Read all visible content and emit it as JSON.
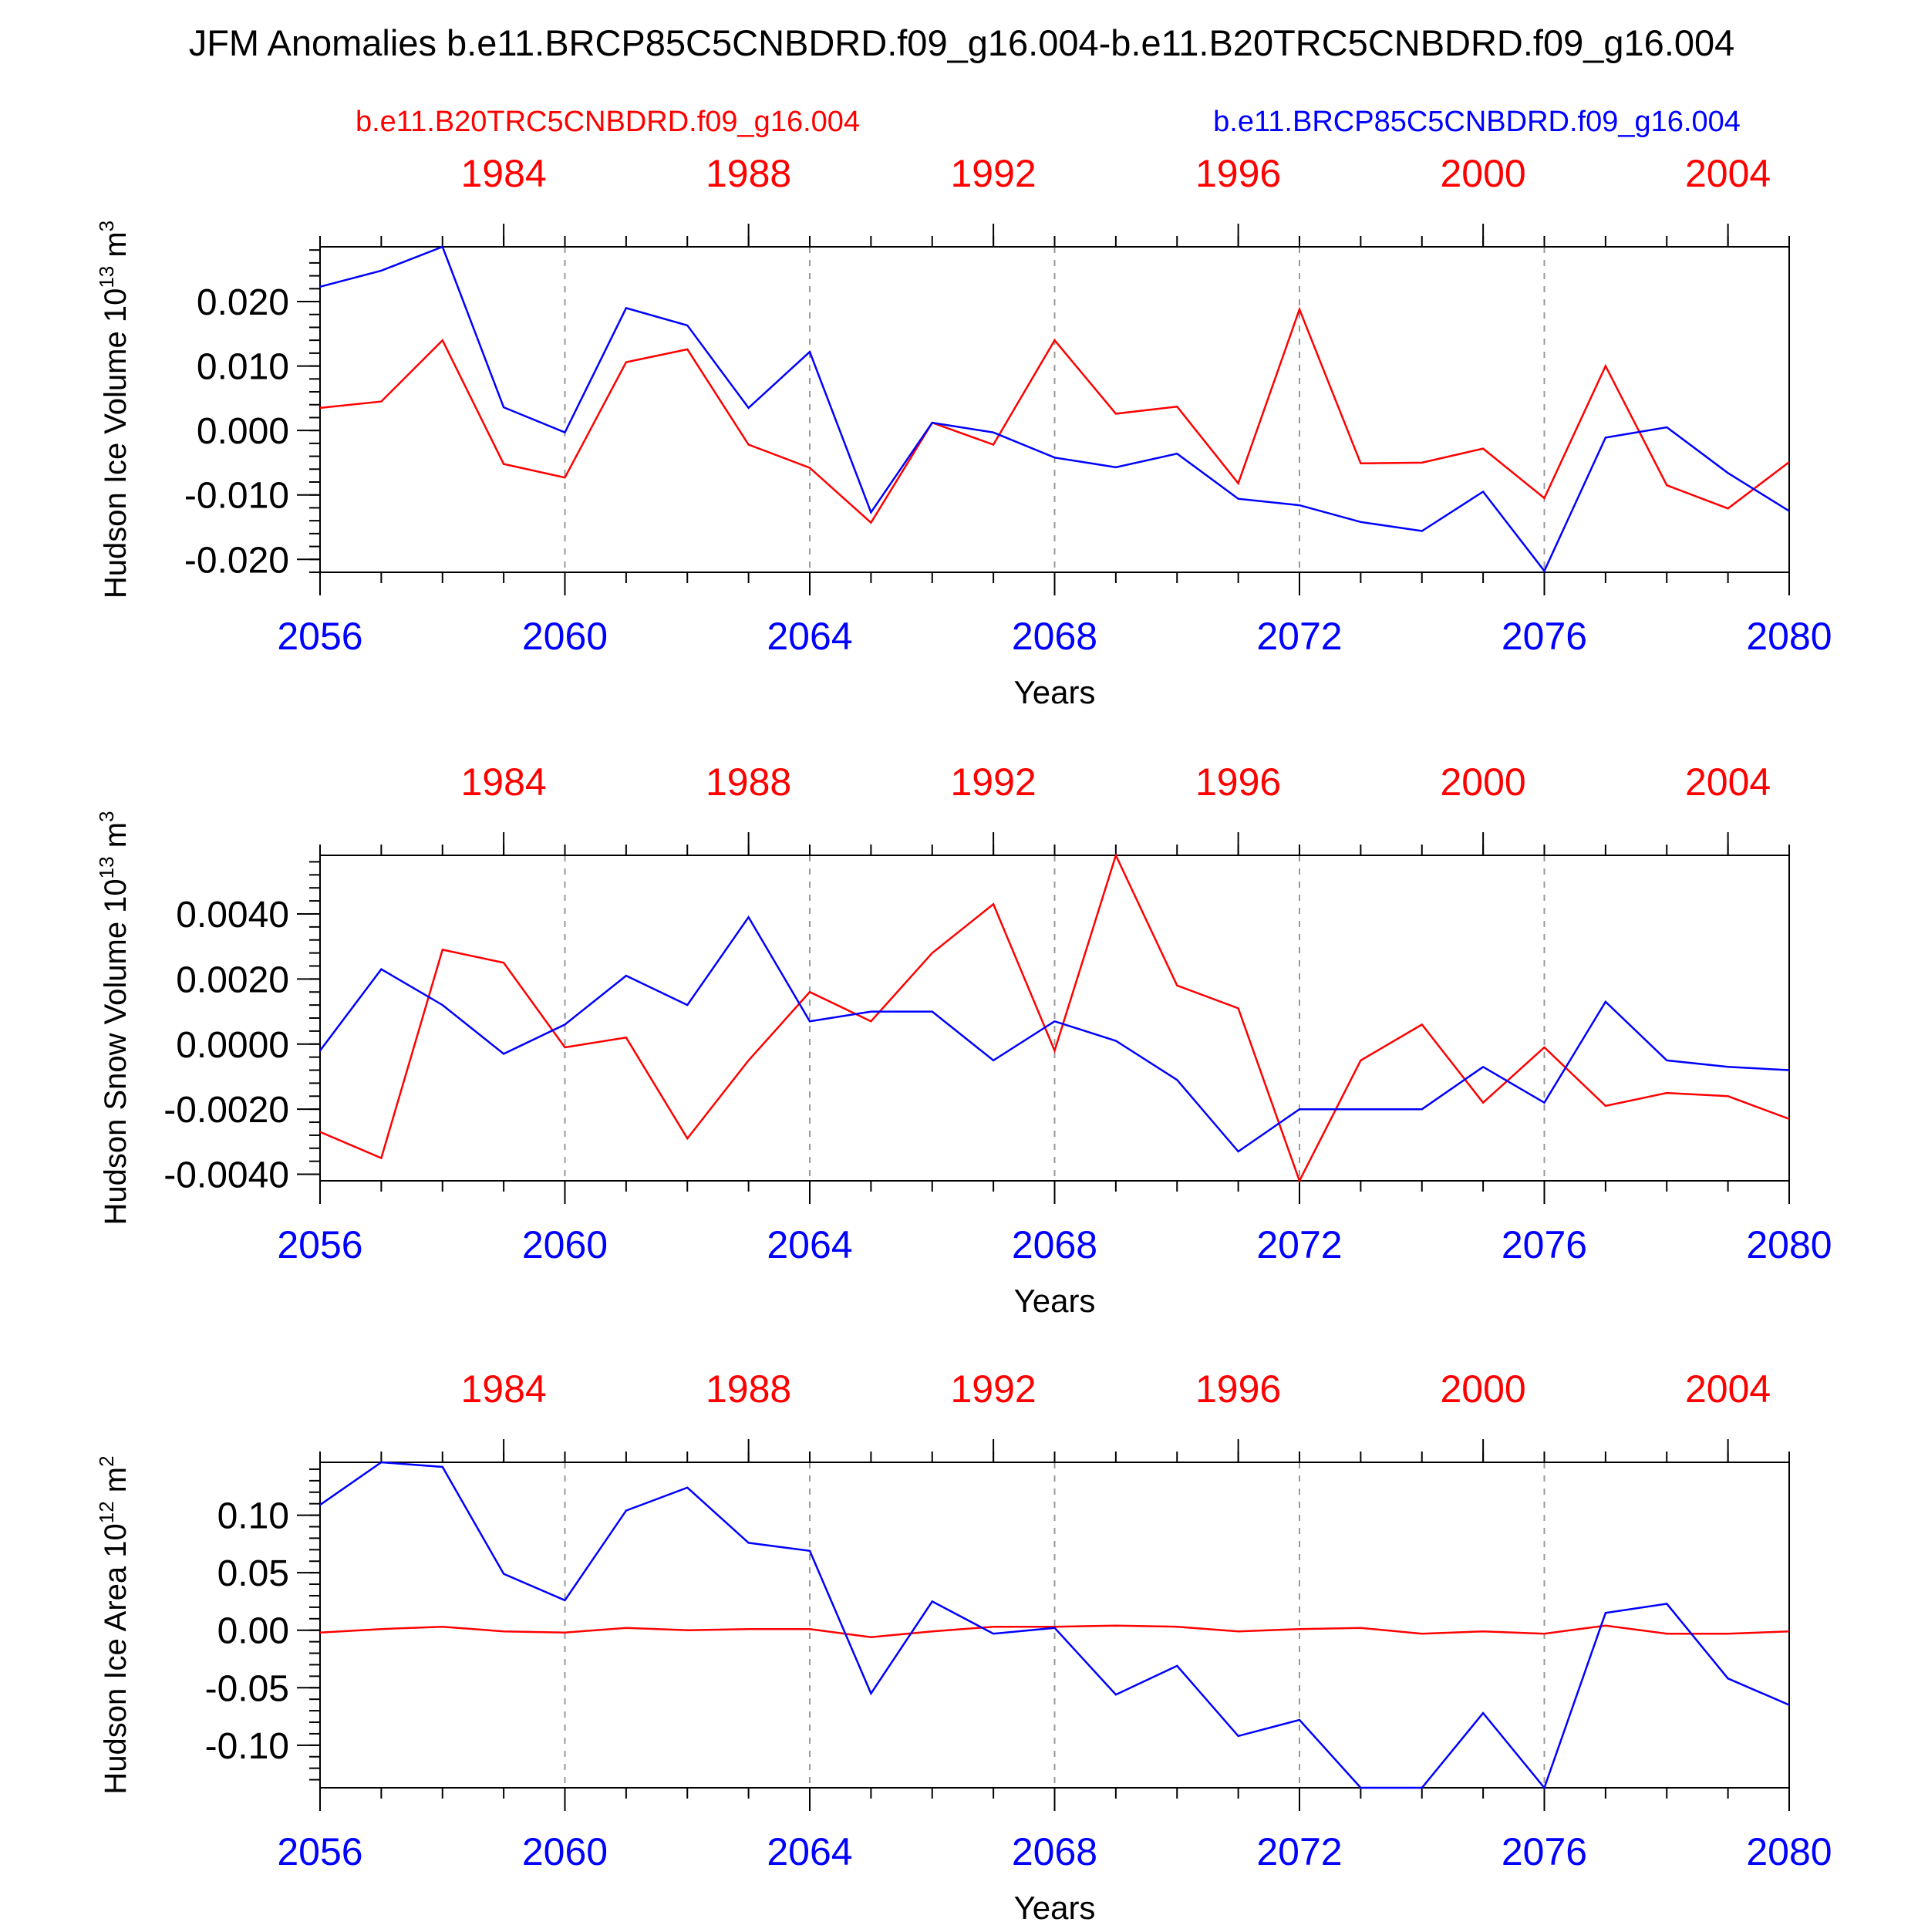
{
  "title": "JFM Anomalies b.e11.BRCP85C5CNBDRD.f09_g16.004-b.e11.B20TRC5CNBDRD.f09_g16.004",
  "legend": {
    "left_label": "b.e11.B20TRC5CNBDRD.f09_g16.004",
    "right_label": "b.e11.BRCP85C5CNBDRD.f09_g16.004"
  },
  "colors": {
    "red": "#ff0000",
    "blue": "#0000ff",
    "axis": "#000000",
    "grid": "#999999"
  },
  "chart_data": [
    {
      "type": "line",
      "ylabel": "Hudson Ice Volume 10",
      "ylabel_exp": "13",
      "ylabel_unit": " m",
      "ylabel_unit_exp": "3",
      "xlabel": "Years",
      "x_bottom": [
        2056,
        2057,
        2058,
        2059,
        2060,
        2061,
        2062,
        2063,
        2064,
        2065,
        2066,
        2067,
        2068,
        2069,
        2070,
        2071,
        2072,
        2073,
        2074,
        2075,
        2076,
        2077,
        2078,
        2079,
        2080
      ],
      "x_top": [
        1981,
        1982,
        1983,
        1984,
        1985,
        1986,
        1987,
        1988,
        1989,
        1990,
        1991,
        1992,
        1993,
        1994,
        1995,
        1996,
        1997,
        1998,
        1999,
        2000,
        2001,
        2002,
        2003,
        2004,
        2005
      ],
      "bottom_ticks": [
        "2056",
        "2060",
        "2064",
        "2068",
        "2072",
        "2076",
        "2080"
      ],
      "top_ticks": [
        "1984",
        "1988",
        "1992",
        "1996",
        "2000",
        "2004"
      ],
      "ylim": [
        -0.022,
        0.0285
      ],
      "yticks": [
        "0.020",
        "0.010",
        "0.000",
        "-0.010",
        "-0.020"
      ],
      "ytick_values": [
        0.02,
        0.01,
        0.0,
        -0.01,
        -0.02
      ],
      "series": [
        {
          "color": "red",
          "values": [
            0.0035,
            0.0045,
            0.014,
            -0.0052,
            -0.0073,
            0.0106,
            0.0126,
            -0.0022,
            -0.0058,
            -0.0143,
            0.0012,
            -0.0022,
            0.014,
            0.0026,
            0.0037,
            -0.0082,
            0.0188,
            -0.0051,
            -0.005,
            -0.0028,
            -0.0105,
            0.01,
            -0.0085,
            -0.0121,
            -0.0049
          ]
        },
        {
          "color": "blue",
          "values": [
            0.0223,
            0.0248,
            0.0285,
            0.0036,
            -0.0003,
            0.019,
            0.0163,
            0.0035,
            0.0122,
            -0.0127,
            0.0012,
            -0.0003,
            -0.0042,
            -0.0057,
            -0.0036,
            -0.0106,
            -0.0116,
            -0.0142,
            -0.0156,
            -0.0095,
            -0.0218,
            -0.0011,
            0.0005,
            -0.0066,
            -0.0125
          ]
        }
      ]
    },
    {
      "type": "line",
      "ylabel": "Hudson Snow Volume 10",
      "ylabel_exp": "13",
      "ylabel_unit": " m",
      "ylabel_unit_exp": "3",
      "xlabel": "Years",
      "x_bottom": [
        2056,
        2057,
        2058,
        2059,
        2060,
        2061,
        2062,
        2063,
        2064,
        2065,
        2066,
        2067,
        2068,
        2069,
        2070,
        2071,
        2072,
        2073,
        2074,
        2075,
        2076,
        2077,
        2078,
        2079,
        2080
      ],
      "x_top": [
        1981,
        1982,
        1983,
        1984,
        1985,
        1986,
        1987,
        1988,
        1989,
        1990,
        1991,
        1992,
        1993,
        1994,
        1995,
        1996,
        1997,
        1998,
        1999,
        2000,
        2001,
        2002,
        2003,
        2004,
        2005
      ],
      "bottom_ticks": [
        "2056",
        "2060",
        "2064",
        "2068",
        "2072",
        "2076",
        "2080"
      ],
      "top_ticks": [
        "1984",
        "1988",
        "1992",
        "1996",
        "2000",
        "2004"
      ],
      "ylim": [
        -0.0042,
        0.0058
      ],
      "yticks": [
        "0.0040",
        "0.0020",
        "0.0000",
        "-0.0020",
        "-0.0040"
      ],
      "ytick_values": [
        0.004,
        0.002,
        0.0,
        -0.002,
        -0.004
      ],
      "series": [
        {
          "color": "red",
          "values": [
            -0.0027,
            -0.0035,
            0.0029,
            0.0025,
            -0.0001,
            0.0002,
            -0.0029,
            -0.0005,
            0.0016,
            0.0007,
            0.0028,
            0.0043,
            -0.0002,
            0.0058,
            0.0018,
            0.0011,
            -0.0042,
            -0.0005,
            0.0006,
            -0.0018,
            -0.0001,
            -0.0019,
            -0.0015,
            -0.0016,
            -0.0023
          ]
        },
        {
          "color": "blue",
          "values": [
            -0.0002,
            0.0023,
            0.0012,
            -0.0003,
            0.0006,
            0.0021,
            0.0012,
            0.0039,
            0.0007,
            0.001,
            0.001,
            -0.0005,
            0.0007,
            0.0001,
            -0.0011,
            -0.0033,
            -0.002,
            -0.002,
            -0.002,
            -0.0007,
            -0.0018,
            0.0013,
            -0.0005,
            -0.0007,
            -0.0008
          ]
        }
      ]
    },
    {
      "type": "line",
      "ylabel": "Hudson Ice Area 10",
      "ylabel_exp": "12",
      "ylabel_unit": " m",
      "ylabel_unit_exp": "2",
      "xlabel": "Years",
      "x_bottom": [
        2056,
        2057,
        2058,
        2059,
        2060,
        2061,
        2062,
        2063,
        2064,
        2065,
        2066,
        2067,
        2068,
        2069,
        2070,
        2071,
        2072,
        2073,
        2074,
        2075,
        2076,
        2077,
        2078,
        2079,
        2080
      ],
      "x_top": [
        1981,
        1982,
        1983,
        1984,
        1985,
        1986,
        1987,
        1988,
        1989,
        1990,
        1991,
        1992,
        1993,
        1994,
        1995,
        1996,
        1997,
        1998,
        1999,
        2000,
        2001,
        2002,
        2003,
        2004,
        2005
      ],
      "bottom_ticks": [
        "2056",
        "2060",
        "2064",
        "2068",
        "2072",
        "2076",
        "2080"
      ],
      "top_ticks": [
        "1984",
        "1988",
        "1992",
        "1996",
        "2000",
        "2004"
      ],
      "ylim": [
        -0.137,
        0.146
      ],
      "yticks": [
        "0.10",
        "0.05",
        "0.00",
        "-0.05",
        "-0.10"
      ],
      "ytick_values": [
        0.1,
        0.05,
        0.0,
        -0.05,
        -0.1
      ],
      "series": [
        {
          "color": "red",
          "values": [
            -0.002,
            0.001,
            0.003,
            -0.001,
            -0.002,
            0.002,
            0.0,
            0.001,
            0.001,
            -0.006,
            -0.001,
            0.003,
            0.003,
            0.004,
            0.003,
            -0.001,
            0.001,
            0.002,
            -0.003,
            -0.001,
            -0.003,
            0.004,
            -0.003,
            -0.003,
            -0.001
          ]
        },
        {
          "color": "blue",
          "values": [
            0.109,
            0.146,
            0.142,
            0.049,
            0.026,
            0.104,
            0.124,
            0.076,
            0.069,
            -0.055,
            0.025,
            -0.003,
            0.002,
            -0.056,
            -0.031,
            -0.092,
            -0.078,
            -0.137,
            -0.137,
            -0.072,
            -0.137,
            0.015,
            0.023,
            -0.042,
            -0.065
          ]
        }
      ]
    }
  ]
}
